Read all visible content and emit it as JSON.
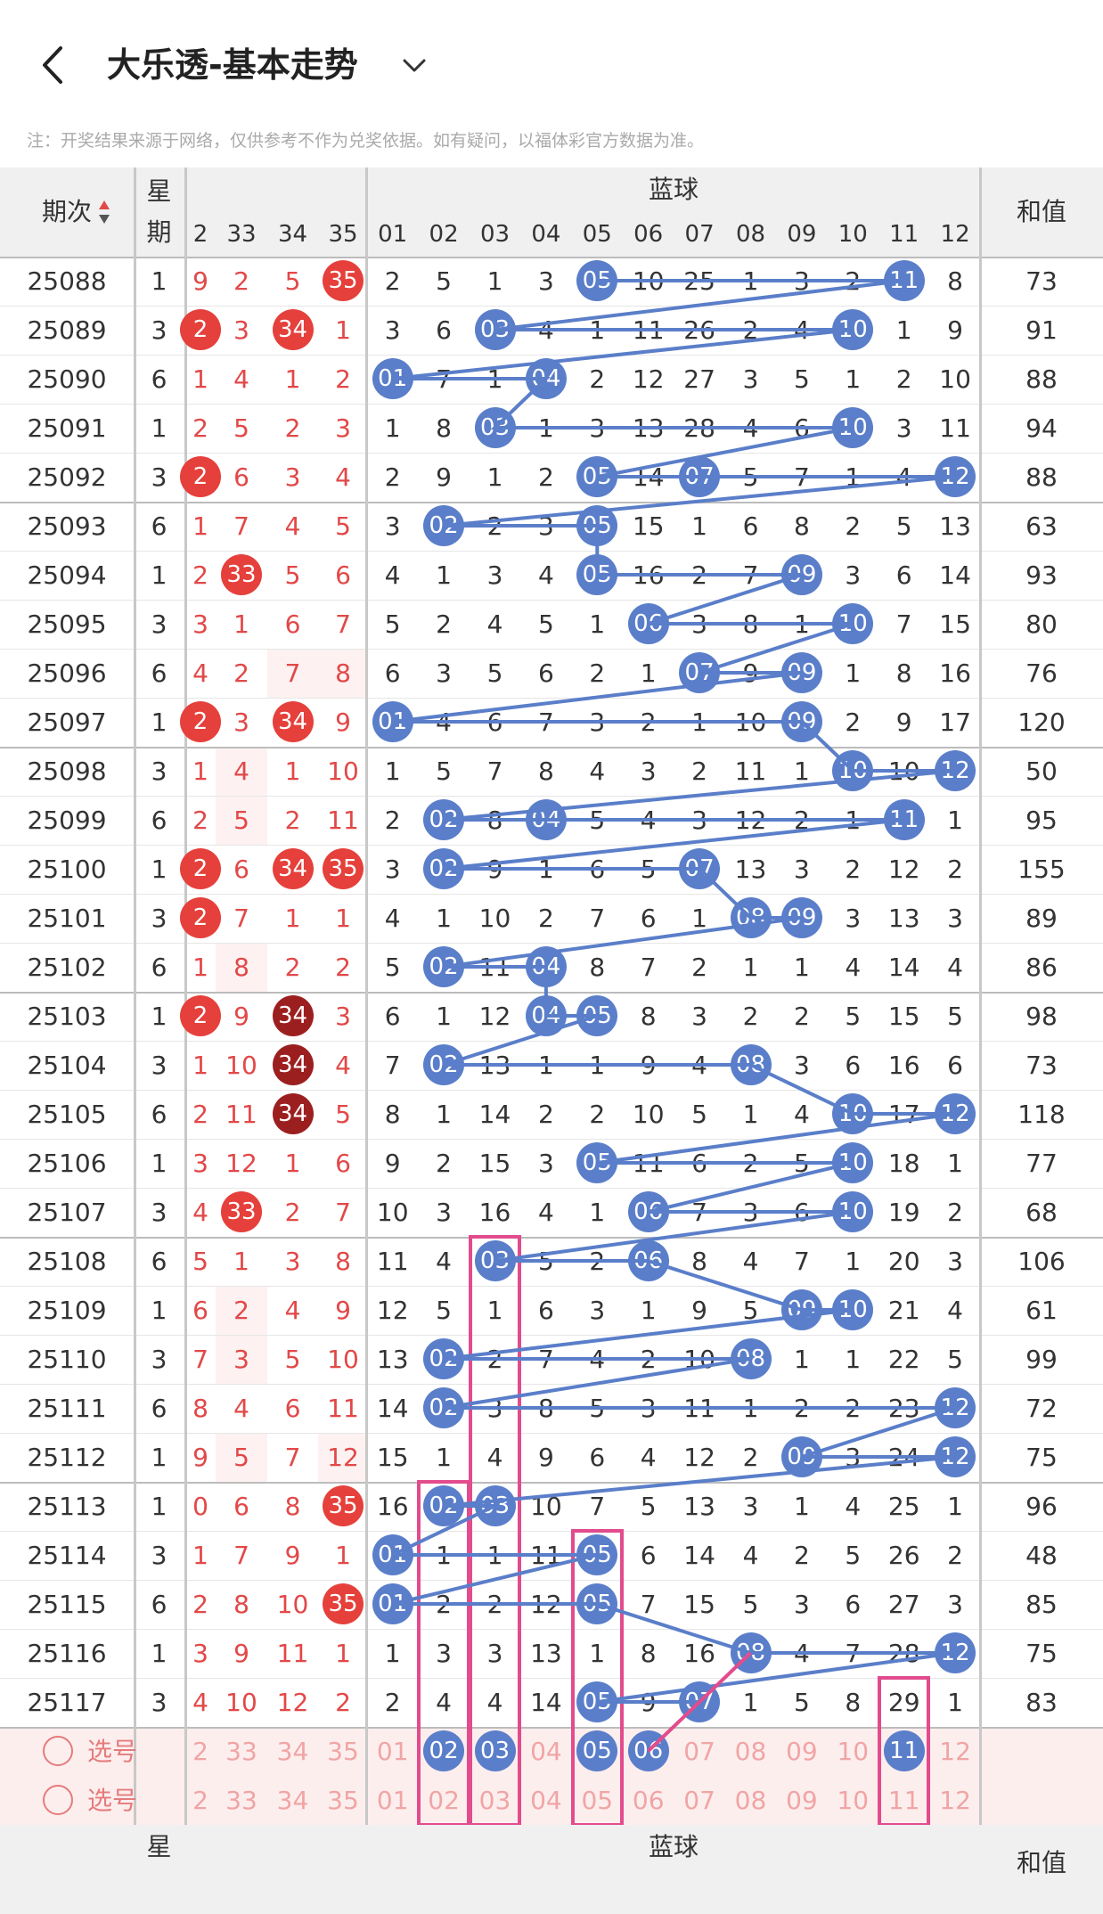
{
  "header": {
    "title": "大乐透-基本走势",
    "back_icon": "chevron-left-icon",
    "dropdown_icon": "chevron-down-icon"
  },
  "note": "注：开奖结果来源于网络，仅供参考不作为兑奖依据。如有疑问，以福体彩官方数据为准。",
  "table_header": {
    "period": "期次",
    "week": "星期",
    "blue": "蓝球",
    "sum": "和值",
    "sort_icon": "sort-arrows-icon"
  },
  "front_cols": [
    "2",
    "33",
    "34",
    "35"
  ],
  "blue_cols": [
    "01",
    "02",
    "03",
    "04",
    "05",
    "06",
    "07",
    "08",
    "09",
    "10",
    "11",
    "12"
  ],
  "rows": [
    {
      "p": "25088",
      "w": "1",
      "f": [
        "9",
        "2",
        "5",
        "35"
      ],
      "fh": [
        false,
        false,
        false,
        true
      ],
      "b": [
        "2",
        "5",
        "1",
        "3",
        "05",
        "10",
        "25",
        "1",
        "3",
        "2",
        "11",
        "8"
      ],
      "s": "73"
    },
    {
      "p": "25089",
      "w": "3",
      "f": [
        "2",
        "3",
        "34",
        "1"
      ],
      "fh": [
        true,
        false,
        true,
        false
      ],
      "b": [
        "3",
        "6",
        "03",
        "4",
        "1",
        "11",
        "26",
        "2",
        "4",
        "10",
        "1",
        "9"
      ],
      "s": "91"
    },
    {
      "p": "25090",
      "w": "6",
      "f": [
        "1",
        "4",
        "1",
        "2"
      ],
      "fh": [
        false,
        false,
        false,
        false
      ],
      "b": [
        "01",
        "7",
        "1",
        "04",
        "2",
        "12",
        "27",
        "3",
        "5",
        "1",
        "2",
        "10"
      ],
      "s": "88"
    },
    {
      "p": "25091",
      "w": "1",
      "f": [
        "2",
        "5",
        "2",
        "3"
      ],
      "fh": [
        false,
        false,
        false,
        false
      ],
      "b": [
        "1",
        "8",
        "03",
        "1",
        "3",
        "13",
        "28",
        "4",
        "6",
        "10",
        "3",
        "11"
      ],
      "s": "94"
    },
    {
      "p": "25092",
      "w": "3",
      "f": [
        "2",
        "6",
        "3",
        "4"
      ],
      "fh": [
        true,
        false,
        false,
        false
      ],
      "b": [
        "2",
        "9",
        "1",
        "2",
        "05",
        "14",
        "07",
        "5",
        "7",
        "1",
        "4",
        "12"
      ],
      "s": "88"
    },
    {
      "p": "25093",
      "w": "6",
      "f": [
        "1",
        "7",
        "4",
        "5"
      ],
      "fh": [
        false,
        false,
        false,
        false
      ],
      "b": [
        "3",
        "02",
        "2",
        "3",
        "05",
        "15",
        "1",
        "6",
        "8",
        "2",
        "5",
        "13"
      ],
      "s": "63"
    },
    {
      "p": "25094",
      "w": "1",
      "f": [
        "2",
        "33",
        "5",
        "6"
      ],
      "fh": [
        false,
        true,
        false,
        false
      ],
      "b": [
        "4",
        "1",
        "3",
        "4",
        "05",
        "16",
        "2",
        "7",
        "09",
        "3",
        "6",
        "14"
      ],
      "s": "93"
    },
    {
      "p": "25095",
      "w": "3",
      "f": [
        "3",
        "1",
        "6",
        "7"
      ],
      "fh": [
        false,
        false,
        false,
        false
      ],
      "b": [
        "5",
        "2",
        "4",
        "5",
        "1",
        "06",
        "3",
        "8",
        "1",
        "10",
        "7",
        "15"
      ],
      "s": "80"
    },
    {
      "p": "25096",
      "w": "6",
      "f": [
        "4",
        "2",
        "7",
        "8"
      ],
      "fh": [
        false,
        false,
        false,
        false
      ],
      "b": [
        "6",
        "3",
        "5",
        "6",
        "2",
        "1",
        "07",
        "9",
        "09",
        "1",
        "8",
        "16"
      ],
      "s": "76"
    },
    {
      "p": "25097",
      "w": "1",
      "f": [
        "2",
        "3",
        "34",
        "9"
      ],
      "fh": [
        true,
        false,
        true,
        false
      ],
      "b": [
        "01",
        "4",
        "6",
        "7",
        "3",
        "2",
        "1",
        "10",
        "09",
        "2",
        "9",
        "17"
      ],
      "s": "120"
    },
    {
      "p": "25098",
      "w": "3",
      "f": [
        "1",
        "4",
        "1",
        "10"
      ],
      "fh": [
        false,
        false,
        false,
        false
      ],
      "b": [
        "1",
        "5",
        "7",
        "8",
        "4",
        "3",
        "2",
        "11",
        "1",
        "10",
        "10",
        "12"
      ],
      "s": "50"
    },
    {
      "p": "25099",
      "w": "6",
      "f": [
        "2",
        "5",
        "2",
        "11"
      ],
      "fh": [
        false,
        false,
        false,
        false
      ],
      "b": [
        "2",
        "02",
        "8",
        "04",
        "5",
        "4",
        "3",
        "12",
        "2",
        "1",
        "11",
        "1"
      ],
      "s": "95"
    },
    {
      "p": "25100",
      "w": "1",
      "f": [
        "2",
        "6",
        "34",
        "35"
      ],
      "fh": [
        true,
        false,
        true,
        true
      ],
      "b": [
        "3",
        "02",
        "9",
        "1",
        "6",
        "5",
        "07",
        "13",
        "3",
        "2",
        "12",
        "2"
      ],
      "s": "155"
    },
    {
      "p": "25101",
      "w": "3",
      "f": [
        "2",
        "7",
        "1",
        "1"
      ],
      "fh": [
        true,
        false,
        false,
        false
      ],
      "b": [
        "4",
        "1",
        "10",
        "2",
        "7",
        "6",
        "1",
        "08",
        "09",
        "3",
        "13",
        "3"
      ],
      "s": "89"
    },
    {
      "p": "25102",
      "w": "6",
      "f": [
        "1",
        "8",
        "2",
        "2"
      ],
      "fh": [
        false,
        false,
        false,
        false
      ],
      "b": [
        "5",
        "02",
        "11",
        "04",
        "8",
        "7",
        "2",
        "1",
        "1",
        "4",
        "14",
        "4"
      ],
      "s": "86"
    },
    {
      "p": "25103",
      "w": "1",
      "f": [
        "2",
        "9",
        "34",
        "3"
      ],
      "fh": [
        true,
        false,
        "d",
        false
      ],
      "b": [
        "6",
        "1",
        "12",
        "04",
        "05",
        "8",
        "3",
        "2",
        "2",
        "5",
        "15",
        "5"
      ],
      "s": "98"
    },
    {
      "p": "25104",
      "w": "3",
      "f": [
        "1",
        "10",
        "34",
        "4"
      ],
      "fh": [
        false,
        false,
        "d",
        false
      ],
      "b": [
        "7",
        "02",
        "13",
        "1",
        "1",
        "9",
        "4",
        "08",
        "3",
        "6",
        "16",
        "6"
      ],
      "s": "73"
    },
    {
      "p": "25105",
      "w": "6",
      "f": [
        "2",
        "11",
        "34",
        "5"
      ],
      "fh": [
        false,
        false,
        "d",
        false
      ],
      "b": [
        "8",
        "1",
        "14",
        "2",
        "2",
        "10",
        "5",
        "1",
        "4",
        "10",
        "17",
        "12"
      ],
      "s": "118"
    },
    {
      "p": "25106",
      "w": "1",
      "f": [
        "3",
        "12",
        "1",
        "6"
      ],
      "fh": [
        false,
        false,
        false,
        false
      ],
      "b": [
        "9",
        "2",
        "15",
        "3",
        "05",
        "11",
        "6",
        "2",
        "5",
        "10",
        "18",
        "1"
      ],
      "s": "77"
    },
    {
      "p": "25107",
      "w": "3",
      "f": [
        "4",
        "33",
        "2",
        "7"
      ],
      "fh": [
        false,
        true,
        false,
        false
      ],
      "b": [
        "10",
        "3",
        "16",
        "4",
        "1",
        "06",
        "7",
        "3",
        "6",
        "10",
        "19",
        "2"
      ],
      "s": "68"
    },
    {
      "p": "25108",
      "w": "6",
      "f": [
        "5",
        "1",
        "3",
        "8"
      ],
      "fh": [
        false,
        false,
        false,
        false
      ],
      "b": [
        "11",
        "4",
        "03",
        "5",
        "2",
        "06",
        "8",
        "4",
        "7",
        "1",
        "20",
        "3"
      ],
      "s": "106"
    },
    {
      "p": "25109",
      "w": "1",
      "f": [
        "6",
        "2",
        "4",
        "9"
      ],
      "fh": [
        false,
        false,
        false,
        false
      ],
      "b": [
        "12",
        "5",
        "1",
        "6",
        "3",
        "1",
        "9",
        "5",
        "09",
        "10",
        "21",
        "4"
      ],
      "s": "61"
    },
    {
      "p": "25110",
      "w": "3",
      "f": [
        "7",
        "3",
        "5",
        "10"
      ],
      "fh": [
        false,
        false,
        false,
        false
      ],
      "b": [
        "13",
        "02",
        "2",
        "7",
        "4",
        "2",
        "10",
        "08",
        "1",
        "1",
        "22",
        "5"
      ],
      "s": "99"
    },
    {
      "p": "25111",
      "w": "6",
      "f": [
        "8",
        "4",
        "6",
        "11"
      ],
      "fh": [
        false,
        false,
        false,
        false
      ],
      "b": [
        "14",
        "02",
        "3",
        "8",
        "5",
        "3",
        "11",
        "1",
        "2",
        "2",
        "23",
        "12"
      ],
      "s": "72"
    },
    {
      "p": "25112",
      "w": "1",
      "f": [
        "9",
        "5",
        "7",
        "12"
      ],
      "fh": [
        false,
        false,
        false,
        false
      ],
      "b": [
        "15",
        "1",
        "4",
        "9",
        "6",
        "4",
        "12",
        "2",
        "09",
        "3",
        "24",
        "12"
      ],
      "s": "75"
    },
    {
      "p": "25113",
      "w": "1",
      "f": [
        "0",
        "6",
        "8",
        "35"
      ],
      "fh": [
        false,
        false,
        false,
        true
      ],
      "b": [
        "16",
        "02",
        "03",
        "10",
        "7",
        "5",
        "13",
        "3",
        "1",
        "4",
        "25",
        "1"
      ],
      "s": "96"
    },
    {
      "p": "25114",
      "w": "3",
      "f": [
        "1",
        "7",
        "9",
        "1"
      ],
      "fh": [
        false,
        false,
        false,
        false
      ],
      "b": [
        "01",
        "1",
        "1",
        "11",
        "05",
        "6",
        "14",
        "4",
        "2",
        "5",
        "26",
        "2"
      ],
      "s": "48"
    },
    {
      "p": "25115",
      "w": "6",
      "f": [
        "2",
        "8",
        "10",
        "35"
      ],
      "fh": [
        false,
        false,
        false,
        true
      ],
      "b": [
        "01",
        "2",
        "2",
        "12",
        "05",
        "7",
        "15",
        "5",
        "3",
        "6",
        "27",
        "3"
      ],
      "s": "85"
    },
    {
      "p": "25116",
      "w": "1",
      "f": [
        "3",
        "9",
        "11",
        "1"
      ],
      "fh": [
        false,
        false,
        false,
        false
      ],
      "b": [
        "1",
        "3",
        "3",
        "13",
        "1",
        "8",
        "16",
        "08",
        "4",
        "7",
        "28",
        "12"
      ],
      "s": "75"
    },
    {
      "p": "25117",
      "w": "3",
      "f": [
        "4",
        "10",
        "12",
        "2"
      ],
      "fh": [
        false,
        false,
        false,
        false
      ],
      "b": [
        "2",
        "4",
        "4",
        "14",
        "05",
        "9",
        "07",
        "1",
        "5",
        "8",
        "29",
        "1"
      ],
      "s": "83"
    }
  ],
  "select_rows": [
    {
      "label": "选号",
      "f": [
        "2",
        "33",
        "34",
        "35"
      ],
      "b": [
        "01",
        "02",
        "03",
        "04",
        "05",
        "06",
        "07",
        "08",
        "09",
        "10",
        "11",
        "12"
      ],
      "picked": [
        1,
        2,
        4,
        5,
        10
      ]
    },
    {
      "label": "选号",
      "f": [
        "2",
        "33",
        "34",
        "35"
      ],
      "b": [
        "01",
        "02",
        "03",
        "04",
        "05",
        "06",
        "07",
        "08",
        "09",
        "10",
        "11",
        "12"
      ],
      "picked": []
    }
  ],
  "footer_header": {
    "week": "星",
    "blue": "蓝球",
    "sum": "和值"
  },
  "colors": {
    "blue_ball": "#5a7ec9",
    "red_ball": "#e5403b",
    "dark_red_ball": "#9c1f1f",
    "frame": "#e24c8d",
    "select_bg": "#fdeeee"
  }
}
